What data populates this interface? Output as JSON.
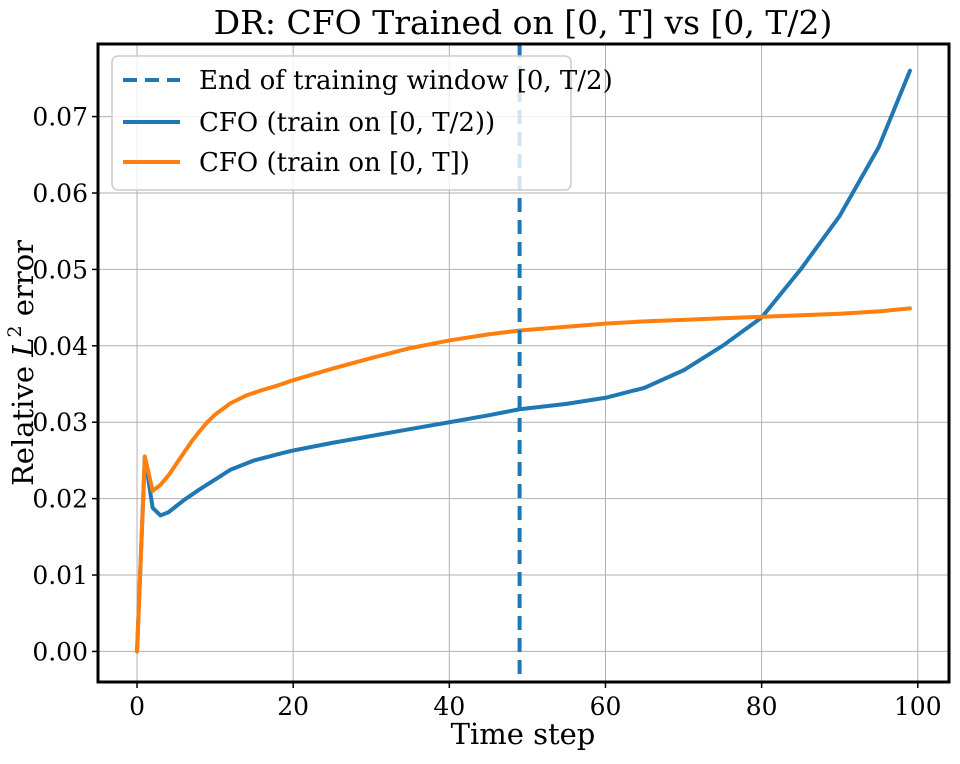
{
  "chart_data": {
    "type": "line",
    "title": "DR: CFO Trained on [0, T] vs [0, T/2)",
    "xlabel": "Time step",
    "ylabel_prefix": "Relative ",
    "ylabel_var": "L",
    "ylabel_exp": "2",
    "ylabel_suffix": " error",
    "xlim": [
      -5,
      104
    ],
    "ylim": [
      -0.004,
      0.0795
    ],
    "xticks": [
      0,
      20,
      40,
      60,
      80,
      100
    ],
    "yticks": [
      0.0,
      0.01,
      0.02,
      0.03,
      0.04,
      0.05,
      0.06,
      0.07
    ],
    "xtick_labels": [
      "0",
      "20",
      "40",
      "60",
      "80",
      "100"
    ],
    "ytick_labels": [
      "0.00",
      "0.01",
      "0.02",
      "0.03",
      "0.04",
      "0.05",
      "0.06",
      "0.07"
    ],
    "grid": true,
    "legend_position": "top-left",
    "vline": {
      "x": 49,
      "label": "End of training window [0, T/2)",
      "color": "#1f77b4",
      "style": "dashed"
    },
    "series": [
      {
        "name": "CFO (train on [0, T/2))",
        "color": "#1f77b4",
        "x": [
          0,
          1,
          2,
          3,
          4,
          5,
          6,
          8,
          10,
          12,
          15,
          18,
          20,
          25,
          30,
          35,
          40,
          45,
          49,
          55,
          60,
          65,
          70,
          75,
          80,
          85,
          90,
          95,
          99
        ],
        "y": [
          0.0,
          0.0255,
          0.0188,
          0.0178,
          0.0182,
          0.019,
          0.0198,
          0.0212,
          0.0225,
          0.0238,
          0.025,
          0.0258,
          0.0263,
          0.0273,
          0.0282,
          0.0291,
          0.03,
          0.0309,
          0.0317,
          0.0324,
          0.0332,
          0.0345,
          0.0368,
          0.04,
          0.0437,
          0.05,
          0.057,
          0.066,
          0.076
        ]
      },
      {
        "name": "CFO (train on [0, T])",
        "color": "#ff7f0e",
        "x": [
          0,
          1,
          2,
          3,
          4,
          5,
          6,
          7,
          8,
          9,
          10,
          12,
          14,
          16,
          18,
          20,
          25,
          30,
          35,
          40,
          45,
          49,
          55,
          60,
          65,
          70,
          75,
          80,
          85,
          90,
          95,
          99
        ],
        "y": [
          0.0,
          0.0255,
          0.021,
          0.0218,
          0.023,
          0.0245,
          0.026,
          0.0275,
          0.0288,
          0.03,
          0.031,
          0.0325,
          0.0335,
          0.0342,
          0.0348,
          0.0355,
          0.037,
          0.0384,
          0.0397,
          0.0407,
          0.0415,
          0.042,
          0.0425,
          0.0429,
          0.0432,
          0.0434,
          0.0436,
          0.0438,
          0.044,
          0.0442,
          0.0445,
          0.0449
        ]
      }
    ]
  }
}
